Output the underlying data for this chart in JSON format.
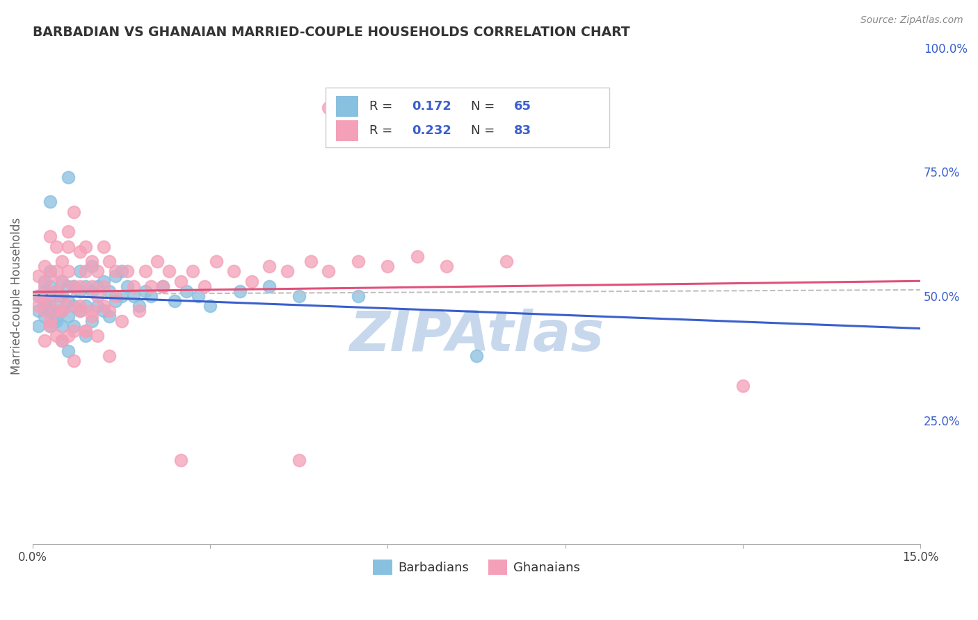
{
  "title": "BARBADIAN VS GHANAIAN MARRIED-COUPLE HOUSEHOLDS CORRELATION CHART",
  "source": "Source: ZipAtlas.com",
  "ylabel": "Married-couple Households",
  "xlim": [
    0.0,
    0.15
  ],
  "ylim": [
    0.0,
    1.0
  ],
  "xtick_positions": [
    0.0,
    0.03,
    0.06,
    0.09,
    0.12,
    0.15
  ],
  "xtick_labels": [
    "0.0%",
    "",
    "",
    "",
    "",
    "15.0%"
  ],
  "ytick_positions": [
    0.0,
    0.25,
    0.5,
    0.75,
    1.0
  ],
  "ytick_right_labels": [
    "",
    "25.0%",
    "50.0%",
    "75.0%",
    "100.0%"
  ],
  "barbadian_color": "#88c0e0",
  "ghanaian_color": "#f4a0b8",
  "trendline_barbadian_color": "#3a5fcd",
  "trendline_ghanaian_color": "#e0507a",
  "trendline_combined_color": "#c0c0c0",
  "watermark": "ZIPAtlas",
  "watermark_color": "#c8d8ec",
  "R_barbadian": "0.172",
  "N_barbadian": "65",
  "R_ghanaian": "0.232",
  "N_ghanaian": "83",
  "legend_text_color": "#3a5fcd",
  "legend_label_color": "#333333",
  "background_color": "#ffffff",
  "grid_color": "#c8c8c8",
  "title_color": "#333333",
  "axis_label_color": "#666666",
  "right_tick_color": "#3a5fcd",
  "barbadian_x": [
    0.001,
    0.001,
    0.001,
    0.002,
    0.002,
    0.002,
    0.002,
    0.002,
    0.003,
    0.003,
    0.003,
    0.003,
    0.003,
    0.004,
    0.004,
    0.004,
    0.004,
    0.005,
    0.005,
    0.005,
    0.005,
    0.005,
    0.006,
    0.006,
    0.006,
    0.006,
    0.007,
    0.007,
    0.007,
    0.008,
    0.008,
    0.008,
    0.009,
    0.009,
    0.009,
    0.01,
    0.01,
    0.01,
    0.011,
    0.011,
    0.012,
    0.012,
    0.013,
    0.013,
    0.014,
    0.014,
    0.015,
    0.015,
    0.016,
    0.017,
    0.018,
    0.019,
    0.02,
    0.022,
    0.024,
    0.026,
    0.028,
    0.03,
    0.035,
    0.04,
    0.045,
    0.055,
    0.075,
    0.003,
    0.006
  ],
  "barbadian_y": [
    0.47,
    0.5,
    0.44,
    0.51,
    0.46,
    0.49,
    0.53,
    0.48,
    0.47,
    0.5,
    0.44,
    0.52,
    0.55,
    0.48,
    0.45,
    0.51,
    0.46,
    0.5,
    0.53,
    0.47,
    0.44,
    0.41,
    0.49,
    0.52,
    0.46,
    0.39,
    0.52,
    0.48,
    0.44,
    0.55,
    0.51,
    0.47,
    0.52,
    0.48,
    0.42,
    0.56,
    0.51,
    0.45,
    0.52,
    0.48,
    0.53,
    0.47,
    0.51,
    0.46,
    0.54,
    0.49,
    0.55,
    0.5,
    0.52,
    0.5,
    0.48,
    0.51,
    0.5,
    0.52,
    0.49,
    0.51,
    0.5,
    0.48,
    0.51,
    0.52,
    0.5,
    0.5,
    0.38,
    0.69,
    0.74
  ],
  "ghanaian_x": [
    0.001,
    0.001,
    0.001,
    0.002,
    0.002,
    0.002,
    0.002,
    0.003,
    0.003,
    0.003,
    0.003,
    0.004,
    0.004,
    0.004,
    0.004,
    0.005,
    0.005,
    0.005,
    0.005,
    0.006,
    0.006,
    0.006,
    0.006,
    0.007,
    0.007,
    0.007,
    0.008,
    0.008,
    0.008,
    0.009,
    0.009,
    0.009,
    0.01,
    0.01,
    0.01,
    0.011,
    0.011,
    0.012,
    0.012,
    0.013,
    0.013,
    0.014,
    0.014,
    0.015,
    0.016,
    0.017,
    0.018,
    0.019,
    0.02,
    0.021,
    0.022,
    0.023,
    0.025,
    0.027,
    0.029,
    0.031,
    0.034,
    0.037,
    0.04,
    0.043,
    0.047,
    0.05,
    0.055,
    0.06,
    0.065,
    0.07,
    0.08,
    0.009,
    0.01,
    0.011,
    0.012,
    0.013,
    0.002,
    0.003,
    0.004,
    0.005,
    0.006,
    0.007,
    0.05,
    0.12,
    0.045,
    0.025,
    0.008
  ],
  "ghanaian_y": [
    0.5,
    0.54,
    0.48,
    0.52,
    0.47,
    0.56,
    0.5,
    0.54,
    0.49,
    0.44,
    0.62,
    0.47,
    0.55,
    0.6,
    0.51,
    0.53,
    0.47,
    0.57,
    0.5,
    0.48,
    0.63,
    0.55,
    0.6,
    0.52,
    0.67,
    0.43,
    0.52,
    0.59,
    0.47,
    0.55,
    0.6,
    0.43,
    0.57,
    0.52,
    0.47,
    0.55,
    0.5,
    0.52,
    0.6,
    0.57,
    0.47,
    0.55,
    0.5,
    0.45,
    0.55,
    0.52,
    0.47,
    0.55,
    0.52,
    0.57,
    0.52,
    0.55,
    0.53,
    0.55,
    0.52,
    0.57,
    0.55,
    0.53,
    0.56,
    0.55,
    0.57,
    0.55,
    0.57,
    0.56,
    0.58,
    0.56,
    0.57,
    0.43,
    0.46,
    0.42,
    0.48,
    0.38,
    0.41,
    0.45,
    0.42,
    0.41,
    0.42,
    0.37,
    0.88,
    0.32,
    0.17,
    0.17,
    0.48
  ]
}
